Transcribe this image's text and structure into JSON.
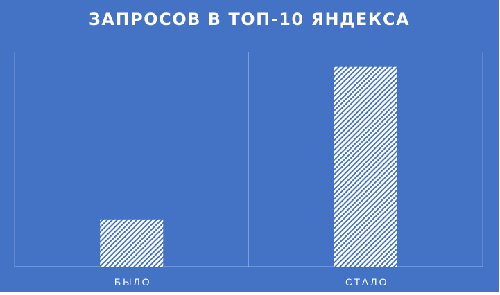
{
  "chart_data": {
    "type": "bar",
    "title": "ЗАПРОСОВ В ТОП-10 ЯНДЕКСА",
    "categories": [
      "БЫЛО",
      "СТАЛО"
    ],
    "values": [
      22,
      93
    ],
    "ylim": [
      0,
      100
    ],
    "xlabel": "",
    "ylabel": "",
    "grid": "vertical category separators",
    "bar_fill": "white diagonal hatch",
    "background": "#4472c4"
  }
}
